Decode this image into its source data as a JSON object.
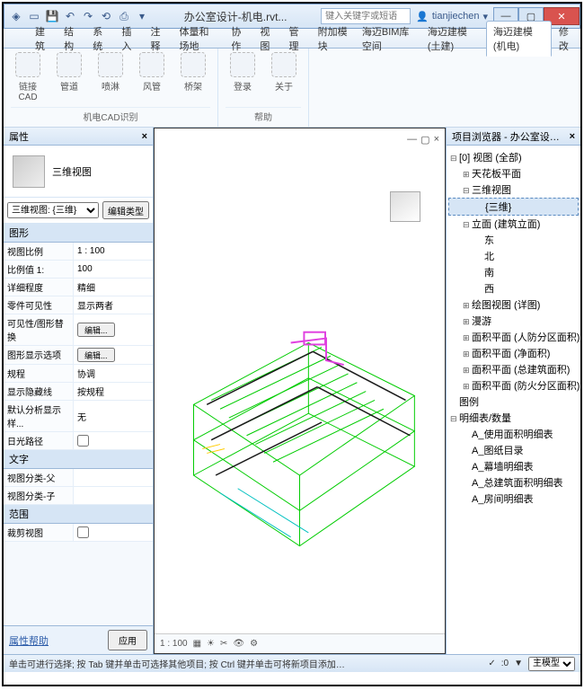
{
  "window": {
    "title": "办公室设计-机电.rvt...",
    "search_placeholder": "键入关键字或短语",
    "username": "tianjiechen",
    "qat_icons": [
      "app",
      "open",
      "save",
      "undo",
      "redo",
      "sync",
      "print",
      "dropdown"
    ]
  },
  "menu": {
    "tabs": [
      "建筑",
      "结构",
      "系统",
      "插入",
      "注释",
      "体量和场地",
      "协作",
      "视图",
      "管理",
      "附加模块",
      "海迈BIM库空间",
      "海迈建模(土建)",
      "海迈建模(机电)",
      "修改"
    ],
    "active_index": 12
  },
  "ribbon": {
    "groups": [
      {
        "label": "机电CAD识别",
        "items": [
          {
            "label": "链接CAD"
          },
          {
            "label": "管道"
          },
          {
            "label": "喷淋"
          },
          {
            "label": "风管"
          },
          {
            "label": "桥架"
          }
        ]
      },
      {
        "label": "帮助",
        "items": [
          {
            "label": "登录"
          },
          {
            "label": "关于"
          }
        ]
      }
    ]
  },
  "properties": {
    "panel_title": "属性",
    "view_type": "三维视图",
    "type_selector": "三维视图: {三维}",
    "edit_type_btn": "编辑类型",
    "sections": [
      {
        "title": "图形",
        "rows": [
          {
            "k": "视图比例",
            "v": "1 : 100"
          },
          {
            "k": "比例值 1:",
            "v": "100"
          },
          {
            "k": "详细程度",
            "v": "精细"
          },
          {
            "k": "零件可见性",
            "v": "显示两者"
          },
          {
            "k": "可见性/图形替换",
            "v": "",
            "btn": "编辑..."
          },
          {
            "k": "图形显示选项",
            "v": "",
            "btn": "编辑..."
          },
          {
            "k": "规程",
            "v": "协调"
          },
          {
            "k": "显示隐藏线",
            "v": "按规程"
          },
          {
            "k": "默认分析显示样...",
            "v": "无"
          },
          {
            "k": "日光路径",
            "v": "",
            "check": false
          }
        ]
      },
      {
        "title": "文字",
        "rows": [
          {
            "k": "视图分类-父",
            "v": ""
          },
          {
            "k": "视图分类-子",
            "v": ""
          }
        ]
      },
      {
        "title": "范围",
        "rows": [
          {
            "k": "裁剪视图",
            "v": "",
            "check": false
          }
        ]
      }
    ],
    "help_link": "属性帮助",
    "apply_btn": "应用"
  },
  "viewport": {
    "scale": "1 : 100",
    "model_colors": {
      "frame": "#00cc00",
      "accent1": "#e040e0",
      "accent2": "#00c0c0",
      "accent3": "#ffcc00",
      "dark": "#1a1a1a"
    }
  },
  "browser": {
    "panel_title": "项目浏览器 - 办公室设计-机电.rvt",
    "tree": [
      {
        "lvl": 0,
        "exp": "-",
        "label": "[0] 视图 (全部)"
      },
      {
        "lvl": 1,
        "exp": "+",
        "label": "天花板平面"
      },
      {
        "lvl": 1,
        "exp": "-",
        "label": "三维视图"
      },
      {
        "lvl": 2,
        "exp": "",
        "label": "{三维}",
        "sel": true
      },
      {
        "lvl": 1,
        "exp": "-",
        "label": "立面 (建筑立面)"
      },
      {
        "lvl": 2,
        "exp": "",
        "label": "东"
      },
      {
        "lvl": 2,
        "exp": "",
        "label": "北"
      },
      {
        "lvl": 2,
        "exp": "",
        "label": "南"
      },
      {
        "lvl": 2,
        "exp": "",
        "label": "西"
      },
      {
        "lvl": 1,
        "exp": "+",
        "label": "绘图视图 (详图)"
      },
      {
        "lvl": 1,
        "exp": "+",
        "label": "漫游"
      },
      {
        "lvl": 1,
        "exp": "+",
        "label": "面积平面 (人防分区面积)"
      },
      {
        "lvl": 1,
        "exp": "+",
        "label": "面积平面 (净面积)"
      },
      {
        "lvl": 1,
        "exp": "+",
        "label": "面积平面 (总建筑面积)"
      },
      {
        "lvl": 1,
        "exp": "+",
        "label": "面积平面 (防火分区面积)"
      },
      {
        "lvl": 0,
        "exp": "",
        "label": "图例"
      },
      {
        "lvl": 0,
        "exp": "-",
        "label": "明细表/数量"
      },
      {
        "lvl": 1,
        "exp": "",
        "label": "A_使用面积明细表"
      },
      {
        "lvl": 1,
        "exp": "",
        "label": "A_图纸目录"
      },
      {
        "lvl": 1,
        "exp": "",
        "label": "A_幕墙明细表"
      },
      {
        "lvl": 1,
        "exp": "",
        "label": "A_总建筑面积明细表"
      },
      {
        "lvl": 1,
        "exp": "",
        "label": "A_房间明细表"
      }
    ]
  },
  "statusbar": {
    "hint": "单击可进行选择; 按 Tab 键并单击可选择其他项目; 按 Ctrl 键并单击可将新项目添加到选择",
    "filter_label": "主模型",
    "zero": "0"
  }
}
